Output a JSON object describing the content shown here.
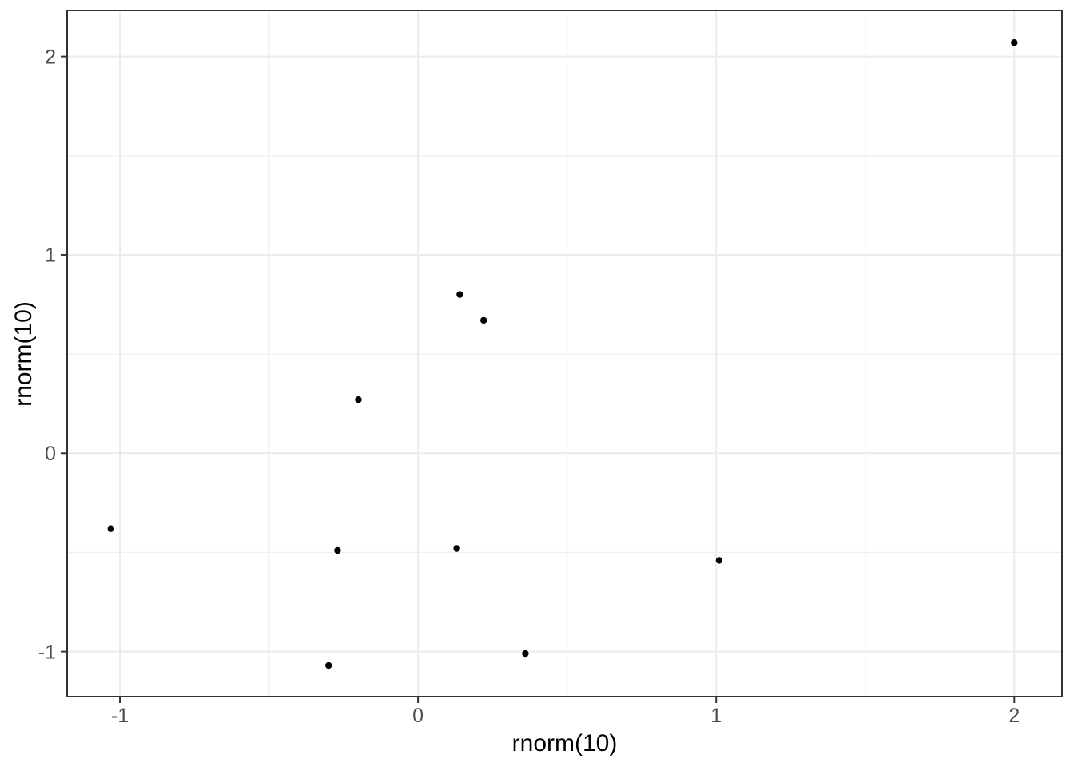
{
  "chart_data": {
    "type": "scatter",
    "title": "",
    "xlabel": "rnorm(10)",
    "ylabel": "rnorm(10)",
    "x": [
      -1.03,
      -0.3,
      -0.27,
      -0.2,
      0.13,
      0.14,
      0.22,
      0.36,
      1.01,
      2.0
    ],
    "y": [
      -0.38,
      -1.07,
      -0.49,
      0.27,
      -0.48,
      0.8,
      0.67,
      -1.01,
      -0.54,
      2.07
    ],
    "xlim": [
      -1.177,
      2.16
    ],
    "ylim": [
      -1.227,
      2.232
    ],
    "x_ticks": [
      -1,
      0,
      1,
      2
    ],
    "x_tick_labels": [
      "-1",
      "0",
      "1",
      "2"
    ],
    "y_ticks": [
      -1,
      0,
      1,
      2
    ],
    "y_tick_labels": [
      "-1",
      "0",
      "1",
      "2"
    ],
    "x_minor_breaks": [
      -0.5,
      0.5,
      1.5
    ],
    "y_minor_breaks": [
      -0.5,
      0.5,
      1.5
    ],
    "grid": "on",
    "legend": "none",
    "colors": {
      "point": "#000000",
      "panel_background": "#ffffff",
      "panel_border": "#333333",
      "grid_major": "#ebebeb",
      "grid_minor": "#efefef",
      "tick_mark": "#333333",
      "tick_label": "#4d4d4d",
      "axis_title": "#000000"
    }
  }
}
